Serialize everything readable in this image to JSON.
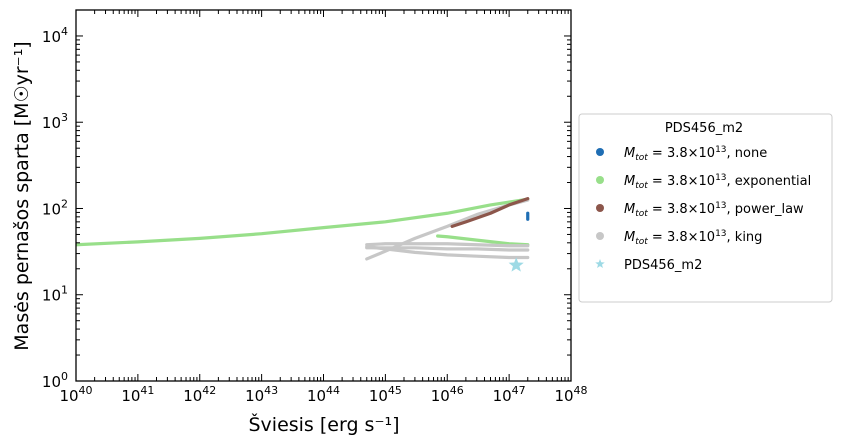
{
  "chart_data": {
    "type": "scatter",
    "xlabel": "Šviesis [erg s⁻¹]",
    "ylabel": "Masės pernašos sparta [M☉yr⁻¹]",
    "xscale": "log",
    "yscale": "log",
    "xlim": [
      1e+40,
      1e+48
    ],
    "ylim": [
      1,
      20000
    ],
    "x_tick_exponents": [
      40,
      41,
      42,
      43,
      44,
      45,
      46,
      47,
      48
    ],
    "y_tick_exponents": [
      0,
      1,
      2,
      3,
      4
    ],
    "grid": false,
    "legend": {
      "title": "PDS456_m2",
      "placement": "outside-right",
      "entries": [
        {
          "label": "M_tot =  3.8×10^13, none",
          "color": "#1f6eb4",
          "marker": "circle"
        },
        {
          "label": "M_tot =  3.8×10^13, exponential",
          "color": "#98df8a",
          "marker": "circle"
        },
        {
          "label": "M_tot =  3.8×10^13, power_law",
          "color": "#8c564b",
          "marker": "circle"
        },
        {
          "label": "M_tot =  3.8×10^13, king",
          "color": "#c7c7c7",
          "marker": "circle"
        },
        {
          "label": "PDS456_m2",
          "color": "#9edae5",
          "marker": "star"
        }
      ]
    },
    "series": [
      {
        "name": "M_tot =  3.8×10^13, exponential",
        "color": "#98df8a",
        "segments": [
          [
            [
              1e+40,
              38
            ],
            [
              1e+41,
              41
            ],
            [
              1e+42,
              45
            ],
            [
              1e+43,
              51
            ],
            [
              1e+44,
              60
            ],
            [
              1e+45,
              70
            ],
            [
              1e+46,
              88
            ],
            [
              5e+46,
              110
            ],
            [
              2e+47,
              128
            ]
          ],
          [
            [
              7e+45,
              48
            ],
            [
              1e+46,
              47
            ],
            [
              3e+46,
              43
            ],
            [
              1e+47,
              39
            ],
            [
              2e+47,
              38
            ]
          ]
        ]
      },
      {
        "name": "M_tot =  3.8×10^13, king",
        "color": "#c7c7c7",
        "segments": [
          [
            [
              5e+44,
              26
            ],
            [
              1e+45,
              32
            ],
            [
              3e+45,
              45
            ],
            [
              1e+46,
              62
            ],
            [
              3e+46,
              85
            ],
            [
              1e+47,
              110
            ],
            [
              2e+47,
              125
            ]
          ],
          [
            [
              5e+44,
              38
            ],
            [
              1e+45,
              39
            ],
            [
              3e+45,
              39
            ],
            [
              1e+46,
              39
            ],
            [
              3e+46,
              38
            ],
            [
              1e+47,
              37
            ],
            [
              2e+47,
              37
            ]
          ],
          [
            [
              5e+44,
              35
            ],
            [
              1e+45,
              35
            ],
            [
              3e+45,
              35
            ],
            [
              1e+46,
              34
            ],
            [
              3e+46,
              34
            ],
            [
              1e+47,
              33
            ],
            [
              2e+47,
              33
            ]
          ],
          [
            [
              5e+44,
              36
            ],
            [
              1e+45,
              34
            ],
            [
              3e+45,
              31
            ],
            [
              1e+46,
              29
            ],
            [
              3e+46,
              28
            ],
            [
              1e+47,
              27
            ],
            [
              2e+47,
              27
            ]
          ]
        ]
      },
      {
        "name": "M_tot =  3.8×10^13, power_law",
        "color": "#8c564b",
        "segments": [
          [
            [
              1.2e+46,
              62
            ],
            [
              2e+46,
              70
            ],
            [
              5e+46,
              88
            ],
            [
              1e+47,
              110
            ],
            [
              2e+47,
              130
            ]
          ]
        ]
      },
      {
        "name": "M_tot =  3.8×10^13, none",
        "color": "#1f6eb4",
        "segments": [
          [
            [
              2e+47,
              75
            ],
            [
              2e+47,
              80
            ],
            [
              2e+47,
              88
            ]
          ]
        ]
      }
    ],
    "markers": [
      {
        "name": "PDS456_m2",
        "x": 1.3e+47,
        "y": 22,
        "color": "#9edae5",
        "marker": "star"
      }
    ]
  }
}
